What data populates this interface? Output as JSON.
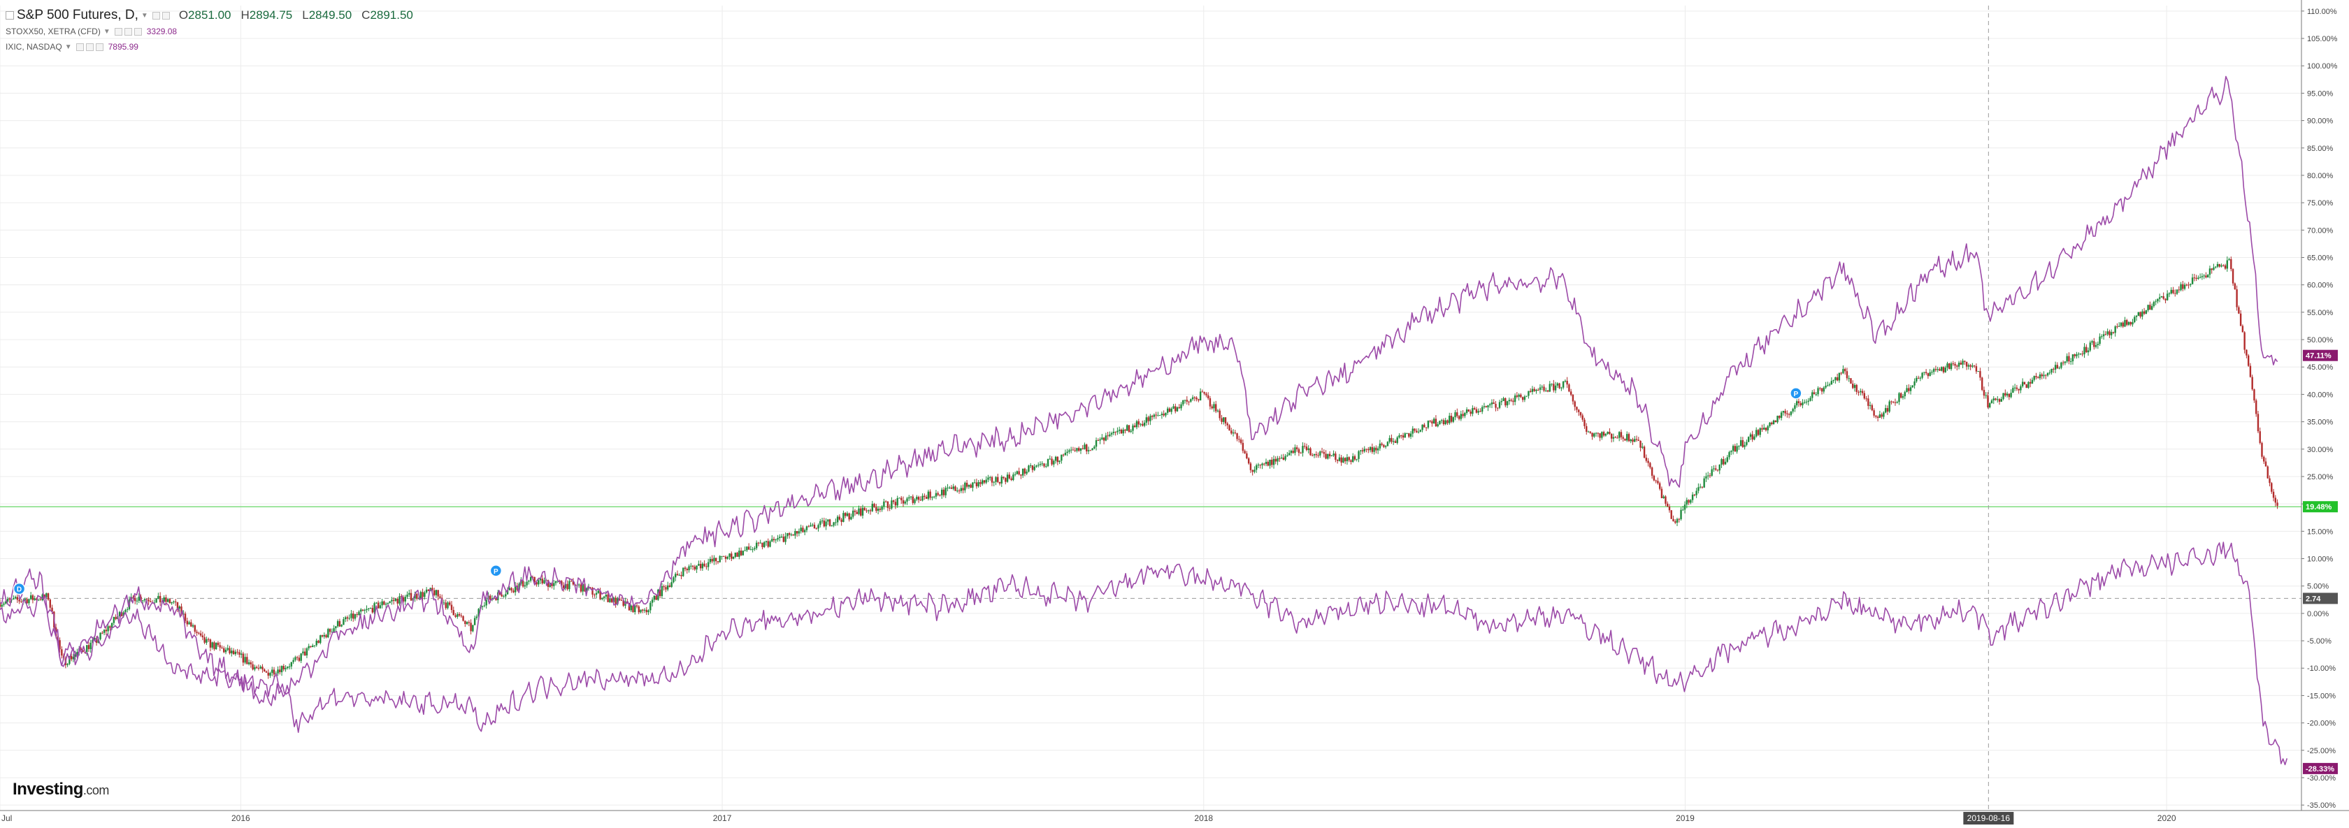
{
  "legend": {
    "main": {
      "symbol": "S&P 500 Futures, D,",
      "open_key": "O",
      "open": "2851.00",
      "high_key": "H",
      "high": "2894.75",
      "low_key": "L",
      "low": "2849.50",
      "close_key": "C",
      "close": "2891.50"
    },
    "sub1": {
      "symbol": "STOXX50, XETRA (CFD)",
      "value": "3329.08"
    },
    "sub2": {
      "symbol": "IXIC, NASDAQ",
      "value": "7895.99"
    }
  },
  "logo": {
    "name": "Investing",
    "suffix": ".com"
  },
  "colors": {
    "up": "#1e8a3c",
    "down": "#b22b2b",
    "line": "#9c4aa8",
    "grid": "#ececec",
    "axis_text": "#444",
    "badge_ixic": "#8a1a6e",
    "badge_sp": "#22c12a",
    "badge_stoxx": "#8a1a6e",
    "badge_cursor": "#555"
  },
  "chart_data": {
    "type": "line",
    "y_axis": {
      "unit": "%",
      "range": [
        -36,
        111
      ],
      "ticks": [
        "110.00%",
        "105.00%",
        "100.00%",
        "95.00%",
        "90.00%",
        "85.00%",
        "80.00%",
        "75.00%",
        "70.00%",
        "65.00%",
        "60.00%",
        "55.00%",
        "50.00%",
        "45.00%",
        "40.00%",
        "35.00%",
        "30.00%",
        "25.00%",
        "20.00%",
        "15.00%",
        "10.00%",
        "5.00%",
        "0.00%",
        "-5.00%",
        "-10.00%",
        "-15.00%",
        "-20.00%",
        "-25.00%",
        "-30.00%",
        "-35.00%"
      ],
      "tick_values": [
        110,
        105,
        100,
        95,
        90,
        85,
        80,
        75,
        70,
        65,
        60,
        55,
        50,
        45,
        40,
        35,
        30,
        25,
        20,
        15,
        10,
        5,
        0,
        -5,
        -10,
        -15,
        -20,
        -25,
        -30,
        -35
      ]
    },
    "x_axis": {
      "range": [
        2015.5,
        2020.28
      ],
      "labels": [
        "Jul",
        "2016",
        "2017",
        "2018",
        "2019",
        "2020"
      ],
      "label_positions": [
        2015.5,
        2016.0,
        2017.0,
        2018.0,
        2019.0,
        2020.0
      ],
      "cursor_label": "2019-08-16",
      "cursor_position": 2019.63
    },
    "reference_line_value": 2.74,
    "horizontal_line_value": 19.48,
    "badges": [
      {
        "text": "47.11%",
        "value": 47.11,
        "color_key": "badge_ixic"
      },
      {
        "text": "19.48%",
        "value": 19.48,
        "color_key": "badge_sp"
      },
      {
        "text": "2.74",
        "value": 2.74,
        "color_key": "badge_cursor"
      },
      {
        "text": "-28.33%",
        "value": -28.33,
        "color_key": "badge_stoxx"
      }
    ],
    "markers": [
      {
        "x": 2015.54,
        "y": 4.5,
        "label": "D"
      },
      {
        "x": 2016.53,
        "y": 7.8,
        "label": "P"
      },
      {
        "x": 2019.23,
        "y": 40.2,
        "label": "P"
      }
    ],
    "series": [
      {
        "name": "S&P 500 Futures",
        "style": "candles",
        "x": [
          2015.5,
          2015.6,
          2015.63,
          2015.7,
          2015.78,
          2015.86,
          2015.92,
          2016.0,
          2016.05,
          2016.11,
          2016.2,
          2016.3,
          2016.4,
          2016.48,
          2016.5,
          2016.6,
          2016.7,
          2016.84,
          2016.86,
          2016.92,
          2017.0,
          2017.1,
          2017.2,
          2017.3,
          2017.45,
          2017.6,
          2017.75,
          2017.9,
          2018.0,
          2018.07,
          2018.1,
          2018.2,
          2018.3,
          2018.45,
          2018.6,
          2018.75,
          2018.8,
          2018.9,
          2018.98,
          2019.0,
          2019.1,
          2019.2,
          2019.33,
          2019.4,
          2019.5,
          2019.6,
          2019.63,
          2019.75,
          2019.9,
          2020.0,
          2020.1,
          2020.13,
          2020.17,
          2020.2,
          2020.23
        ],
        "values": [
          2,
          3,
          -9,
          -5,
          3,
          2,
          -5,
          -8,
          -11,
          -9,
          -2,
          2,
          4,
          -3,
          2,
          6,
          5,
          0,
          3,
          8,
          10,
          13,
          16,
          19,
          22,
          25,
          30,
          36,
          40,
          32,
          26,
          30,
          28,
          34,
          38,
          42,
          33,
          32,
          16,
          20,
          30,
          36,
          44,
          36,
          44,
          46,
          38,
          44,
          52,
          58,
          63,
          64,
          45,
          28,
          19.48
        ]
      },
      {
        "name": "IXIC, NASDAQ",
        "style": "line",
        "x": [
          2015.5,
          2015.58,
          2015.63,
          2015.7,
          2015.78,
          2015.86,
          2015.92,
          2016.0,
          2016.05,
          2016.11,
          2016.2,
          2016.3,
          2016.4,
          2016.48,
          2016.5,
          2016.6,
          2016.7,
          2016.84,
          2016.86,
          2016.92,
          2017.0,
          2017.15,
          2017.3,
          2017.45,
          2017.6,
          2017.75,
          2017.9,
          2018.0,
          2018.07,
          2018.1,
          2018.2,
          2018.3,
          2018.45,
          2018.6,
          2018.75,
          2018.8,
          2018.9,
          2018.98,
          2019.0,
          2019.1,
          2019.2,
          2019.33,
          2019.4,
          2019.5,
          2019.6,
          2019.63,
          2019.75,
          2019.9,
          2020.0,
          2020.1,
          2020.13,
          2020.17,
          2020.2,
          2020.23
        ],
        "values": [
          2,
          7,
          -10,
          -3,
          3,
          1,
          -8,
          -12,
          -16,
          -13,
          -4,
          0,
          3,
          -7,
          2,
          7,
          5,
          2,
          4,
          12,
          15,
          20,
          24,
          30,
          32,
          38,
          44,
          50,
          48,
          32,
          40,
          44,
          54,
          60,
          61,
          48,
          40,
          22,
          30,
          44,
          52,
          63,
          50,
          62,
          66,
          54,
          62,
          74,
          85,
          95,
          96,
          73,
          46,
          47.11
        ]
      },
      {
        "name": "STOXX50, XETRA (CFD)",
        "style": "line",
        "x": [
          2015.5,
          2015.6,
          2015.63,
          2015.7,
          2015.78,
          2015.86,
          2016.0,
          2016.1,
          2016.11,
          2016.2,
          2016.3,
          2016.48,
          2016.5,
          2016.6,
          2016.7,
          2016.84,
          2016.92,
          2017.0,
          2017.2,
          2017.3,
          2017.45,
          2017.6,
          2017.75,
          2017.9,
          2018.0,
          2018.07,
          2018.2,
          2018.35,
          2018.5,
          2018.6,
          2018.75,
          2018.9,
          2018.98,
          2019.0,
          2019.1,
          2019.2,
          2019.33,
          2019.45,
          2019.6,
          2019.63,
          2019.75,
          2019.9,
          2020.0,
          2020.1,
          2020.13,
          2020.17,
          2020.2,
          2020.25
        ],
        "values": [
          0,
          2,
          -8,
          -6,
          0,
          -10,
          -12,
          -14,
          -20,
          -15,
          -16,
          -17,
          -21,
          -14,
          -12,
          -12,
          -11,
          -3,
          0,
          3,
          1,
          5,
          2,
          8,
          6,
          5,
          -2,
          2,
          1,
          -2,
          0,
          -8,
          -13,
          -12,
          -6,
          -3,
          2,
          -2,
          1,
          -4,
          1,
          8,
          9,
          11,
          12,
          5,
          -20,
          -28.33
        ]
      }
    ]
  }
}
